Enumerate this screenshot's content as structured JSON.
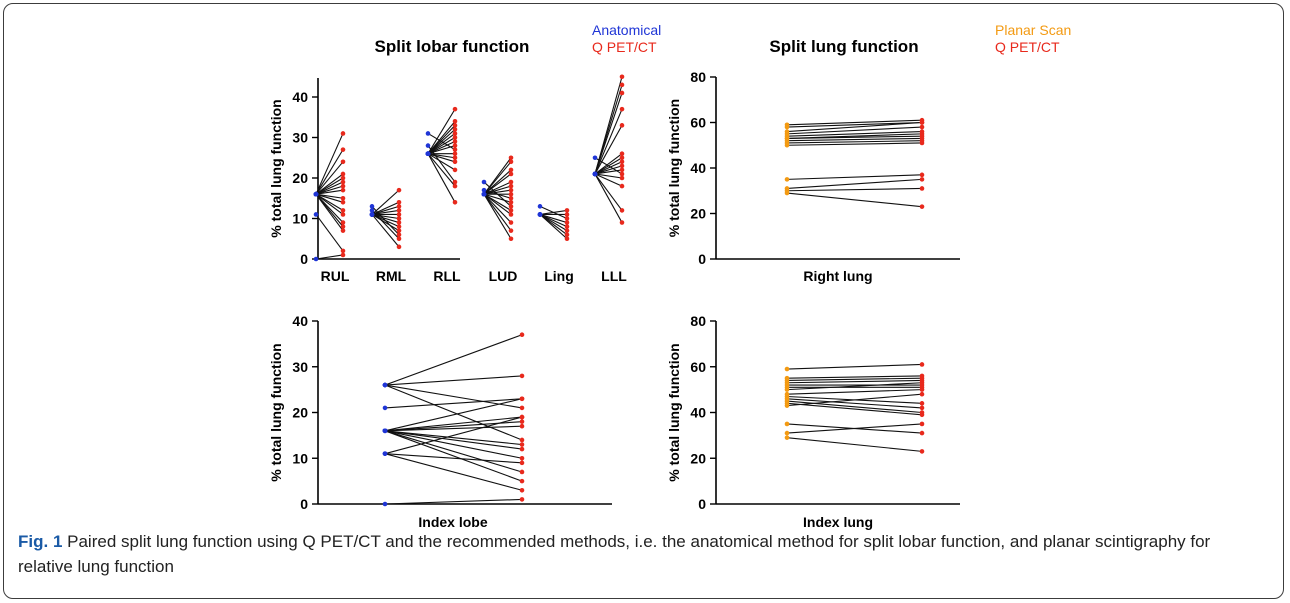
{
  "caption": {
    "label": "Fig. 1",
    "text": " Paired split lung function using Q PET/CT and the recommended methods, i.e. the anatomical method for split lobar function, and planar scintigraphy for relative lung function"
  },
  "colors": {
    "anatomical": "#1f35d6",
    "qpet": "#e8291c",
    "planar": "#f39a12",
    "line": "#111111"
  },
  "chart_data": [
    {
      "type": "scatter",
      "subtype": "paired",
      "title": "Split lobar function",
      "ylabel": "% total lung function",
      "xlabel": "",
      "ylim": [
        0,
        45
      ],
      "yticks": [
        0,
        10,
        20,
        30,
        40
      ],
      "legend": [
        {
          "name": "Anatomical",
          "color": "#1f35d6"
        },
        {
          "name": "Q PET/CT",
          "color": "#e8291c"
        }
      ],
      "categories": [
        "RUL",
        "RML",
        "RLL",
        "LUD",
        "Ling",
        "LLL"
      ],
      "pairs": [
        [
          [
            16,
            31
          ],
          [
            16,
            27
          ],
          [
            16,
            24
          ],
          [
            16,
            21
          ],
          [
            16,
            20
          ],
          [
            16,
            19
          ],
          [
            16,
            18
          ],
          [
            16,
            17
          ],
          [
            16,
            15
          ],
          [
            16,
            14
          ],
          [
            16,
            12
          ],
          [
            16,
            11
          ],
          [
            16,
            9
          ],
          [
            16,
            8
          ],
          [
            16,
            7
          ],
          [
            11,
            2
          ],
          [
            0,
            1
          ]
        ],
        [
          [
            11,
            17
          ],
          [
            11,
            14
          ],
          [
            11,
            13
          ],
          [
            11,
            12
          ],
          [
            11,
            11
          ],
          [
            11,
            10
          ],
          [
            11,
            9
          ],
          [
            11,
            8
          ],
          [
            11,
            7
          ],
          [
            13,
            6
          ],
          [
            12,
            5
          ],
          [
            11,
            3
          ]
        ],
        [
          [
            26,
            37
          ],
          [
            26,
            34
          ],
          [
            26,
            33
          ],
          [
            26,
            32
          ],
          [
            26,
            31
          ],
          [
            26,
            30
          ],
          [
            26,
            29
          ],
          [
            26,
            28
          ],
          [
            31,
            27
          ],
          [
            26,
            26
          ],
          [
            26,
            25
          ],
          [
            26,
            24
          ],
          [
            26,
            22
          ],
          [
            28,
            19
          ],
          [
            26,
            18
          ],
          [
            26,
            14
          ]
        ],
        [
          [
            16,
            25
          ],
          [
            16,
            24
          ],
          [
            16,
            22
          ],
          [
            16,
            21
          ],
          [
            16,
            19
          ],
          [
            16,
            18
          ],
          [
            16,
            17
          ],
          [
            16,
            16
          ],
          [
            17,
            15
          ],
          [
            16,
            14
          ],
          [
            19,
            13
          ],
          [
            16,
            12
          ],
          [
            16,
            11
          ],
          [
            16,
            9
          ],
          [
            16,
            7
          ],
          [
            16,
            5
          ]
        ],
        [
          [
            11,
            12
          ],
          [
            11,
            11
          ],
          [
            13,
            10
          ],
          [
            11,
            9
          ],
          [
            11,
            8
          ],
          [
            11,
            7
          ],
          [
            11,
            6
          ],
          [
            11,
            5
          ]
        ],
        [
          [
            21,
            45
          ],
          [
            21,
            43
          ],
          [
            21,
            41
          ],
          [
            21,
            37
          ],
          [
            21,
            33
          ],
          [
            21,
            26
          ],
          [
            21,
            25
          ],
          [
            21,
            24
          ],
          [
            21,
            23
          ],
          [
            21,
            22
          ],
          [
            25,
            21
          ],
          [
            21,
            20
          ],
          [
            21,
            18
          ],
          [
            21,
            12
          ],
          [
            21,
            9
          ]
        ]
      ]
    },
    {
      "type": "scatter",
      "subtype": "paired",
      "title": "Split lung function",
      "ylabel": "% total lung function",
      "xlabel": "Right lung",
      "ylim": [
        0,
        80
      ],
      "yticks": [
        0,
        20,
        40,
        60,
        80
      ],
      "legend": [
        {
          "name": "Planar Scan",
          "color": "#f39a12"
        },
        {
          "name": "Q PET/CT",
          "color": "#e8291c"
        }
      ],
      "pairs": [
        [
          59,
          61
        ],
        [
          58,
          60
        ],
        [
          56,
          60
        ],
        [
          55,
          58
        ],
        [
          54,
          56
        ],
        [
          53,
          55
        ],
        [
          53,
          54
        ],
        [
          52,
          53
        ],
        [
          51,
          52
        ],
        [
          50,
          51
        ],
        [
          35,
          37
        ],
        [
          31,
          35
        ],
        [
          30,
          31
        ],
        [
          29,
          23
        ]
      ]
    },
    {
      "type": "scatter",
      "subtype": "paired",
      "title": "",
      "ylabel": "% total lung function",
      "xlabel": "Index lobe",
      "ylim": [
        0,
        40
      ],
      "yticks": [
        0,
        10,
        20,
        30,
        40
      ],
      "pairs": [
        [
          26,
          37
        ],
        [
          26,
          28
        ],
        [
          26,
          21
        ],
        [
          26,
          14
        ],
        [
          21,
          23
        ],
        [
          16,
          23
        ],
        [
          16,
          19
        ],
        [
          16,
          18
        ],
        [
          16,
          17
        ],
        [
          16,
          13
        ],
        [
          16,
          12
        ],
        [
          16,
          10
        ],
        [
          16,
          7
        ],
        [
          16,
          5
        ],
        [
          11,
          19
        ],
        [
          11,
          9
        ],
        [
          11,
          3
        ],
        [
          0,
          1
        ]
      ]
    },
    {
      "type": "scatter",
      "subtype": "paired",
      "title": "",
      "ylabel": "% total lung function",
      "xlabel": "Index lung",
      "ylim": [
        0,
        80
      ],
      "yticks": [
        0,
        20,
        40,
        60,
        80
      ],
      "pairs": [
        [
          59,
          61
        ],
        [
          55,
          56
        ],
        [
          54,
          55
        ],
        [
          53,
          54
        ],
        [
          52,
          52
        ],
        [
          51,
          51
        ],
        [
          50,
          53
        ],
        [
          48,
          50
        ],
        [
          47,
          44
        ],
        [
          46,
          42
        ],
        [
          45,
          40
        ],
        [
          44,
          39
        ],
        [
          43,
          48
        ],
        [
          35,
          31
        ],
        [
          31,
          35
        ],
        [
          29,
          23
        ]
      ]
    }
  ]
}
